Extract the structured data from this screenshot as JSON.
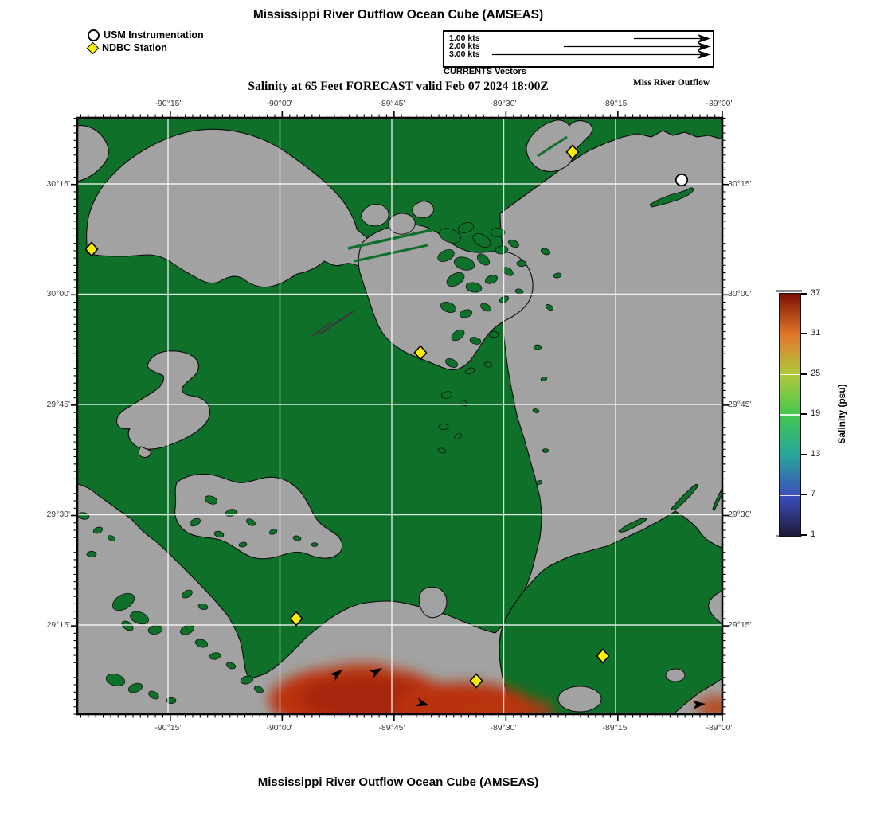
{
  "header": {
    "title": "Mississippi River Outflow Ocean Cube (AMSEAS)"
  },
  "marker_legend": {
    "usm_label": "USM Instrumentation",
    "ndbc_label": "NDBC Station"
  },
  "currents_legend": {
    "caption": "CURRENTS Vectors",
    "lines": [
      {
        "label": "1.00 kts"
      },
      {
        "label": "2.00 kts"
      },
      {
        "label": "3.00 kts"
      }
    ]
  },
  "forecast_line": {
    "title": "Salinity at 65 Feet FORECAST valid Feb 07 2024 18:00Z",
    "region": "Miss River Outflow"
  },
  "map": {
    "x_tick_labels": [
      "-90°15'",
      "-90°00'",
      "-89°45'",
      "-89°30'",
      "-89°15'",
      "-89°00'"
    ],
    "y_tick_labels": [
      "30°15'",
      "30°00'",
      "29°45'",
      "29°30'",
      "29°15'"
    ],
    "grid_interval": "major 15 arcmin, minor 1 arcmin",
    "lon_range_deg": [
      -90.44,
      -89.0
    ],
    "lat_range_deg": [
      29.05,
      30.4
    ],
    "water_color": "#0f7029",
    "land_color": "#a2a2a2",
    "plume_color": "#b93210",
    "typical_water_salinity_psu": 17,
    "plume_salinity_psu_max": 34,
    "ndbc_stations_lonlat": [
      [
        -90.41,
        30.1
      ],
      [
        -89.33,
        30.32
      ],
      [
        -89.67,
        29.87
      ],
      [
        -89.95,
        29.26
      ],
      [
        -89.55,
        29.12
      ],
      [
        -89.27,
        29.18
      ]
    ],
    "usm_station_lonlat": [
      -89.09,
      30.26
    ]
  },
  "colorbar": {
    "title": "Salinity (psu)",
    "tick_labels": [
      "37",
      "31",
      "25",
      "19",
      "13",
      "7",
      "1"
    ],
    "min": 1,
    "max": 37,
    "gradient_bottom_to_top": [
      "#1d1b38",
      "#3e4ebd",
      "#28a69b",
      "#42c64f",
      "#b2c93c",
      "#e1762a",
      "#7c1004"
    ]
  },
  "footer": {
    "title": "Mississippi River Outflow Ocean Cube (AMSEAS)"
  }
}
